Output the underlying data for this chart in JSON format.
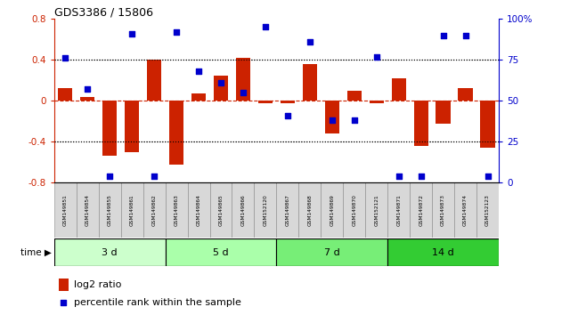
{
  "title": "GDS3386 / 15806",
  "samples": [
    "GSM149851",
    "GSM149854",
    "GSM149855",
    "GSM149861",
    "GSM149862",
    "GSM149863",
    "GSM149864",
    "GSM149865",
    "GSM149866",
    "GSM152120",
    "GSM149867",
    "GSM149868",
    "GSM149869",
    "GSM149870",
    "GSM152121",
    "GSM149871",
    "GSM149872",
    "GSM149873",
    "GSM149874",
    "GSM152123"
  ],
  "log2_ratio": [
    0.12,
    0.04,
    -0.54,
    -0.5,
    0.4,
    -0.62,
    0.07,
    0.25,
    0.42,
    -0.02,
    -0.02,
    0.36,
    -0.32,
    0.1,
    -0.02,
    0.22,
    -0.44,
    -0.22,
    0.12,
    -0.46
  ],
  "percentile_rank": [
    76,
    57,
    4,
    91,
    4,
    92,
    68,
    61,
    55,
    95,
    41,
    86,
    38,
    38,
    77,
    4,
    4,
    90,
    90,
    4
  ],
  "groups": [
    {
      "label": "3 d",
      "start": 0,
      "end": 5,
      "color": "#ccffcc"
    },
    {
      "label": "5 d",
      "start": 5,
      "end": 10,
      "color": "#aaffaa"
    },
    {
      "label": "7 d",
      "start": 10,
      "end": 15,
      "color": "#77ee77"
    },
    {
      "label": "14 d",
      "start": 15,
      "end": 20,
      "color": "#33cc33"
    }
  ],
  "bar_color": "#cc2200",
  "dot_color": "#0000cc",
  "left_ylim": [
    -0.8,
    0.8
  ],
  "right_ylim": [
    0,
    100
  ],
  "left_yticks": [
    -0.8,
    -0.4,
    0.0,
    0.4,
    0.8
  ],
  "right_yticks": [
    0,
    25,
    50,
    75,
    100
  ],
  "bg_color": "#ffffff",
  "legend_log2_label": "log2 ratio",
  "legend_pct_label": "percentile rank within the sample"
}
